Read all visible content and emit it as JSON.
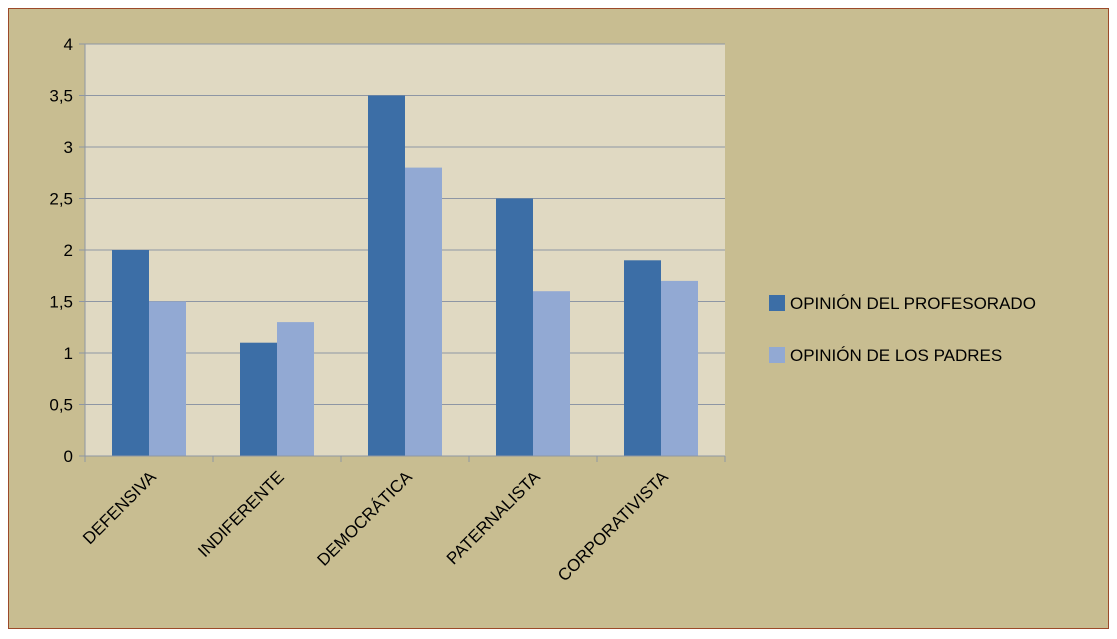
{
  "chart_data": {
    "type": "bar",
    "categories": [
      "DEFENSIVA",
      "INDIFERENTE",
      "DEMOCRÁTICA",
      "PATERNALISTA",
      "CORPORATIVISTA"
    ],
    "series": [
      {
        "name": "OPINIÓN DEL PROFESORADO",
        "values": [
          2.0,
          1.1,
          3.5,
          2.5,
          1.9
        ],
        "color": "#3c6ea6"
      },
      {
        "name": "OPINIÓN DE LOS PADRES",
        "values": [
          1.5,
          1.3,
          2.8,
          1.6,
          1.7
        ],
        "color": "#92a9d3"
      }
    ],
    "title": "",
    "xlabel": "",
    "ylabel": "",
    "ylim": [
      0,
      4
    ],
    "yticks": [
      "0",
      "0,5",
      "1",
      "1,5",
      "2",
      "2,5",
      "3",
      "3,5",
      "4"
    ],
    "grid": true,
    "legend_position": "right",
    "colors": {
      "frame_background": "#c8bd91",
      "plot_background": "#e0d9c2",
      "frame_border": "#9c4a2a",
      "gridline": "#8e96a4"
    }
  }
}
